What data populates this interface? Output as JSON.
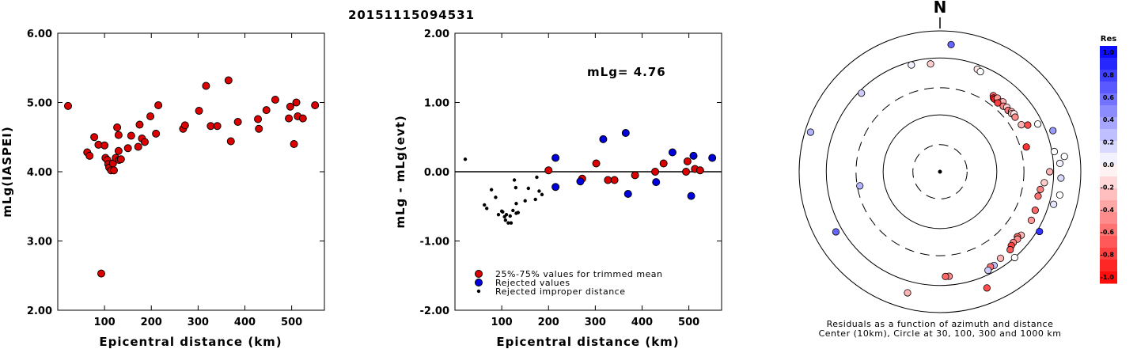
{
  "title": "20151115094531",
  "chart_data": [
    {
      "type": "scatter",
      "xlabel": "Epicentral distance (km)",
      "ylabel": "mLg(IASPEI)",
      "xlim": [
        0,
        570
      ],
      "ylim": [
        2.0,
        6.0
      ],
      "x_ticks": [
        100,
        200,
        300,
        400,
        500
      ],
      "y_ticks": [
        "2.00",
        "3.00",
        "4.00",
        "5.00",
        "6.00"
      ],
      "series": [
        {
          "color": "#dd0000",
          "points": [
            [
              22,
              4.95
            ],
            [
              63,
              4.28
            ],
            [
              68,
              4.23
            ],
            [
              78,
              4.5
            ],
            [
              87,
              4.39
            ],
            [
              93,
              2.53
            ],
            [
              100,
              4.38
            ],
            [
              102,
              4.2
            ],
            [
              106,
              4.17
            ],
            [
              108,
              4.11
            ],
            [
              110,
              4.06
            ],
            [
              114,
              4.02
            ],
            [
              118,
              4.12
            ],
            [
              120,
              4.02
            ],
            [
              124,
              4.2
            ],
            [
              127,
              4.64
            ],
            [
              130,
              4.53
            ],
            [
              130,
              4.3
            ],
            [
              131,
              4.17
            ],
            [
              135,
              4.18
            ],
            [
              150,
              4.34
            ],
            [
              157,
              4.52
            ],
            [
              172,
              4.36
            ],
            [
              175,
              4.68
            ],
            [
              180,
              4.48
            ],
            [
              186,
              4.43
            ],
            [
              198,
              4.8
            ],
            [
              210,
              4.55
            ],
            [
              215,
              4.96
            ],
            [
              268,
              4.62
            ],
            [
              272,
              4.67
            ],
            [
              302,
              4.88
            ],
            [
              317,
              5.24
            ],
            [
              327,
              4.66
            ],
            [
              341,
              4.66
            ],
            [
              365,
              5.32
            ],
            [
              370,
              4.44
            ],
            [
              385,
              4.72
            ],
            [
              428,
              4.76
            ],
            [
              430,
              4.62
            ],
            [
              446,
              4.89
            ],
            [
              465,
              5.04
            ],
            [
              494,
              4.77
            ],
            [
              497,
              4.94
            ],
            [
              505,
              4.4
            ],
            [
              510,
              5.0
            ],
            [
              513,
              4.8
            ],
            [
              524,
              4.77
            ],
            [
              550,
              4.96
            ]
          ]
        }
      ]
    },
    {
      "type": "scatter",
      "xlabel": "Epicentral distance (km)",
      "ylabel": "mLg - mLg(evt)",
      "annotation": "mLg= 4.76",
      "xlim": [
        0,
        570
      ],
      "ylim": [
        -2.0,
        2.0
      ],
      "x_ticks": [
        100,
        200,
        300,
        400,
        500
      ],
      "y_ticks": [
        "-2.00",
        "-1.00",
        "0.00",
        "1.00",
        "2.00"
      ],
      "series": [
        {
          "name": "25%-75% values for trimmed mean",
          "color": "#dd0000",
          "points": [
            [
              200,
              0.02
            ],
            [
              272,
              -0.1
            ],
            [
              302,
              0.12
            ],
            [
              327,
              -0.12
            ],
            [
              341,
              -0.12
            ],
            [
              385,
              -0.05
            ],
            [
              428,
              0.0
            ],
            [
              446,
              0.12
            ],
            [
              494,
              0.0
            ],
            [
              497,
              0.15
            ],
            [
              513,
              0.04
            ],
            [
              524,
              0.02
            ]
          ]
        },
        {
          "name": "Rejected values",
          "color": "#0000dd",
          "points": [
            [
              215,
              0.2
            ],
            [
              215,
              -0.22
            ],
            [
              268,
              -0.14
            ],
            [
              317,
              0.47
            ],
            [
              365,
              0.56
            ],
            [
              370,
              -0.32
            ],
            [
              430,
              -0.15
            ],
            [
              465,
              0.28
            ],
            [
              505,
              -0.35
            ],
            [
              510,
              0.23
            ],
            [
              550,
              0.2
            ]
          ]
        },
        {
          "name": "Rejected improper distance",
          "color": "#000000",
          "points": [
            [
              22,
              0.18
            ],
            [
              63,
              -0.48
            ],
            [
              68,
              -0.53
            ],
            [
              78,
              -0.26
            ],
            [
              87,
              -0.37
            ],
            [
              93,
              -0.62
            ],
            [
              100,
              -0.57
            ],
            [
              102,
              -0.58
            ],
            [
              106,
              -0.65
            ],
            [
              108,
              -0.7
            ],
            [
              110,
              -0.62
            ],
            [
              114,
              -0.74
            ],
            [
              118,
              -0.64
            ],
            [
              120,
              -0.74
            ],
            [
              124,
              -0.56
            ],
            [
              127,
              -0.12
            ],
            [
              130,
              -0.23
            ],
            [
              131,
              -0.46
            ],
            [
              131,
              -0.6
            ],
            [
              135,
              -0.59
            ],
            [
              150,
              -0.42
            ],
            [
              157,
              -0.24
            ],
            [
              172,
              -0.4
            ],
            [
              175,
              -0.08
            ],
            [
              180,
              -0.28
            ],
            [
              186,
              -0.33
            ]
          ]
        }
      ],
      "legend": [
        {
          "label": "25%-75% values for trimmed mean",
          "color": "#dd0000",
          "size": "large"
        },
        {
          "label": "Rejected values",
          "color": "#0000dd",
          "size": "large"
        },
        {
          "label": "Rejected improper distance",
          "color": "#000000",
          "size": "small"
        }
      ]
    },
    {
      "type": "polar-scatter",
      "north_label": "N",
      "caption_line1": "Residuals as a function of azimuth and distance",
      "caption_line2": "Center (10km), Circle at 30, 100, 300 and 1000 km",
      "rings_km": [
        30,
        100,
        300,
        1000
      ],
      "dashed_rings_km": [
        30,
        300
      ],
      "points": [
        {
          "az": 5,
          "dist": 1750,
          "res": 0.6
        },
        {
          "az": 345,
          "dist": 880,
          "res": 0.05
        },
        {
          "az": 355,
          "dist": 800,
          "res": -0.2
        },
        {
          "az": 20,
          "dist": 830,
          "res": -0.1
        },
        {
          "az": 22,
          "dist": 790,
          "res": 0.0
        },
        {
          "az": 315,
          "dist": 900,
          "res": 0.2
        },
        {
          "az": 287,
          "dist": 2400,
          "res": 0.3
        },
        {
          "az": 260,
          "dist": 270,
          "res": 0.3
        },
        {
          "az": 240,
          "dist": 1300,
          "res": 0.6
        },
        {
          "az": 35,
          "dist": 430,
          "res": -0.6
        },
        {
          "az": 36,
          "dist": 400,
          "res": -0.85
        },
        {
          "az": 37,
          "dist": 395,
          "res": -0.9
        },
        {
          "az": 39,
          "dist": 410,
          "res": -0.8
        },
        {
          "az": 38,
          "dist": 440,
          "res": -0.4
        },
        {
          "az": 41,
          "dist": 420,
          "res": -0.7
        },
        {
          "az": 42,
          "dist": 450,
          "res": -0.3
        },
        {
          "az": 40,
          "dist": 380,
          "res": -0.75
        },
        {
          "az": 44,
          "dist": 400,
          "res": -0.5
        },
        {
          "az": 46,
          "dist": 430,
          "res": -0.2
        },
        {
          "az": 48,
          "dist": 410,
          "res": -0.55
        },
        {
          "az": 50,
          "dist": 440,
          "res": -0.35
        },
        {
          "az": 51,
          "dist": 420,
          "res": -0.25
        },
        {
          "az": 52,
          "dist": 450,
          "res": -0.1
        },
        {
          "az": 54,
          "dist": 430,
          "res": -0.45
        },
        {
          "az": 60,
          "dist": 450,
          "res": -0.3
        },
        {
          "az": 62,
          "dist": 560,
          "res": -0.7
        },
        {
          "az": 64,
          "dist": 820,
          "res": 0.0
        },
        {
          "az": 70,
          "dist": 1300,
          "res": 0.4
        },
        {
          "az": 74,
          "dist": 380,
          "res": -0.8
        },
        {
          "az": 80,
          "dist": 1100,
          "res": 0.0
        },
        {
          "az": 83,
          "dist": 1600,
          "res": 0.0
        },
        {
          "az": 86,
          "dist": 1300,
          "res": 0.05
        },
        {
          "az": 90,
          "dist": 850,
          "res": -0.3
        },
        {
          "az": 93,
          "dist": 1350,
          "res": 0.15
        },
        {
          "az": 96,
          "dist": 700,
          "res": -0.2
        },
        {
          "az": 100,
          "dist": 620,
          "res": -0.5
        },
        {
          "az": 101,
          "dist": 1400,
          "res": 0.0
        },
        {
          "az": 104,
          "dist": 600,
          "res": -0.55
        },
        {
          "az": 106,
          "dist": 1200,
          "res": 0.1
        },
        {
          "az": 112,
          "dist": 640,
          "res": -0.6
        },
        {
          "az": 118,
          "dist": 660,
          "res": -0.4
        },
        {
          "az": 121,
          "dist": 1100,
          "res": 0.8
        },
        {
          "az": 128,
          "dist": 650,
          "res": -0.3
        },
        {
          "az": 130,
          "dist": 600,
          "res": -0.6
        },
        {
          "az": 131,
          "dist": 640,
          "res": -0.45
        },
        {
          "az": 134,
          "dist": 620,
          "res": -0.5
        },
        {
          "az": 136,
          "dist": 640,
          "res": -0.75
        },
        {
          "az": 138,
          "dist": 700,
          "res": -0.65
        },
        {
          "az": 139,
          "dist": 1000,
          "res": 0.0
        },
        {
          "az": 145,
          "dist": 720,
          "res": -0.3
        },
        {
          "az": 150,
          "dist": 800,
          "res": 0.25
        },
        {
          "az": 152,
          "dist": 780,
          "res": -0.55
        },
        {
          "az": 154,
          "dist": 850,
          "res": 0.2
        },
        {
          "az": 158,
          "dist": 1600,
          "res": -0.7
        },
        {
          "az": 175,
          "dist": 700,
          "res": -0.45
        },
        {
          "az": 177,
          "dist": 700,
          "res": -0.6
        },
        {
          "az": 195,
          "dist": 1600,
          "res": -0.3
        }
      ]
    }
  ],
  "colorbar": {
    "title": "Res",
    "labels": [
      "1.0",
      "0.8",
      "0.6",
      "0.4",
      "0.2",
      "0.0",
      "-0.2",
      "-0.4",
      "-0.6",
      "-0.8",
      "-1.0"
    ]
  }
}
